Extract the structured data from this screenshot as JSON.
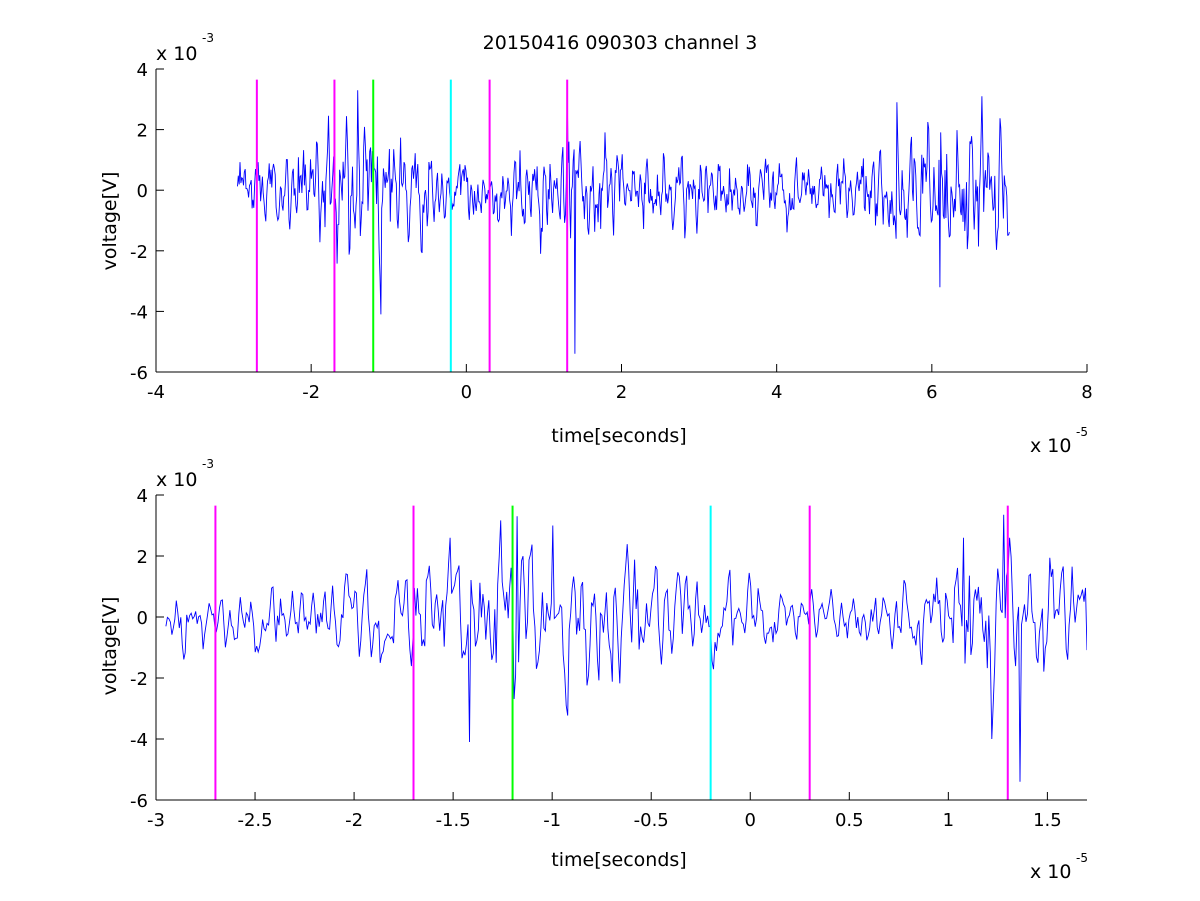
{
  "figure_title": "20150416 090303 channel 3",
  "colors": {
    "signal": "#0000ff",
    "marker_magenta": "#ff00ff",
    "marker_green": "#00ff00",
    "marker_cyan": "#00ffff",
    "axis": "#000000",
    "background": "#ffffff"
  },
  "chart_data": [
    {
      "type": "line",
      "title": "20150416 090303 channel 3",
      "xlabel": "time[seconds]",
      "ylabel": "voltage[V]",
      "x_exponent_base": "x 10",
      "x_exponent": "-5",
      "y_exponent_base": "x 10",
      "y_exponent": "-3",
      "xlim": [
        -4,
        8
      ],
      "ylim": [
        -6,
        4
      ],
      "x_ticks": [
        -4,
        -2,
        0,
        2,
        4,
        6,
        8
      ],
      "x_tick_labels": [
        "-4",
        "-2",
        "0",
        "2",
        "4",
        "6",
        "8"
      ],
      "y_ticks": [
        -6,
        -4,
        -2,
        0,
        2,
        4
      ],
      "y_tick_labels": [
        "-6",
        "-4",
        "-2",
        "0",
        "2",
        "4"
      ],
      "grid": false,
      "series": [
        {
          "color": "#0000ff",
          "signal": {
            "x_start": -2.95,
            "x_end": 7.0,
            "n_points": 900,
            "seed": 7,
            "envelope": [
              [
                -2.95,
                0.7
              ],
              [
                -2.3,
                0.8
              ],
              [
                -2.0,
                1.0
              ],
              [
                -1.6,
                1.6
              ],
              [
                -1.2,
                1.7
              ],
              [
                -0.8,
                1.3
              ],
              [
                -0.4,
                0.8
              ],
              [
                0.4,
                0.7
              ],
              [
                1.0,
                1.1
              ],
              [
                1.4,
                1.5
              ],
              [
                2.0,
                0.9
              ],
              [
                3.0,
                0.8
              ],
              [
                4.0,
                0.75
              ],
              [
                5.0,
                0.8
              ],
              [
                5.5,
                1.1
              ],
              [
                6.0,
                1.5
              ],
              [
                6.6,
                1.7
              ],
              [
                7.0,
                1.6
              ]
            ],
            "spikes": [
              [
                -1.1,
                -4.1
              ],
              [
                -1.4,
                3.3
              ],
              [
                1.3,
                3.4
              ],
              [
                1.4,
                -5.4
              ],
              [
                6.65,
                3.1
              ],
              [
                6.1,
                -3.2
              ],
              [
                5.55,
                2.9
              ]
            ]
          }
        }
      ],
      "markers": [
        {
          "x": -2.7,
          "color": "#ff00ff",
          "y_top": 3.65
        },
        {
          "x": -1.7,
          "color": "#ff00ff",
          "y_top": 3.65
        },
        {
          "x": -1.2,
          "color": "#00ff00",
          "y_top": 3.65
        },
        {
          "x": -0.2,
          "color": "#00ffff",
          "y_top": 3.65
        },
        {
          "x": 0.3,
          "color": "#ff00ff",
          "y_top": 3.65
        },
        {
          "x": 1.3,
          "color": "#ff00ff",
          "y_top": 3.65
        }
      ]
    },
    {
      "type": "line",
      "xlabel": "time[seconds]",
      "ylabel": "voltage[V]",
      "x_exponent_base": "x 10",
      "x_exponent": "-5",
      "y_exponent_base": "x 10",
      "y_exponent": "-3",
      "xlim": [
        -3.0,
        1.7
      ],
      "ylim": [
        -6,
        4
      ],
      "x_ticks": [
        -3,
        -2.5,
        -2,
        -1.5,
        -1,
        -0.5,
        0,
        0.5,
        1,
        1.5
      ],
      "x_tick_labels": [
        "-3",
        "-2.5",
        "-2",
        "-1.5",
        "-1",
        "-0.5",
        "0",
        "0.5",
        "1",
        "1.5"
      ],
      "y_ticks": [
        -6,
        -4,
        -2,
        0,
        2,
        4
      ],
      "y_tick_labels": [
        "-6",
        "-4",
        "-2",
        "0",
        "2",
        "4"
      ],
      "grid": false,
      "series": [
        {
          "color": "#0000ff",
          "signal": {
            "x_start": -2.95,
            "x_end": 1.7,
            "n_points": 620,
            "seed": 11,
            "envelope": [
              [
                -2.95,
                0.7
              ],
              [
                -2.3,
                0.7
              ],
              [
                -2.0,
                1.0
              ],
              [
                -1.6,
                1.2
              ],
              [
                -1.4,
                1.8
              ],
              [
                -1.1,
                1.9
              ],
              [
                -0.8,
                1.7
              ],
              [
                -0.5,
                1.2
              ],
              [
                -0.2,
                0.9
              ],
              [
                0.3,
                0.6
              ],
              [
                0.8,
                0.7
              ],
              [
                1.0,
                1.2
              ],
              [
                1.2,
                2.0
              ],
              [
                1.4,
                1.6
              ],
              [
                1.7,
                1.4
              ]
            ],
            "spikes": [
              [
                -1.42,
                -4.1
              ],
              [
                -1.18,
                3.3
              ],
              [
                1.22,
                -4.0
              ],
              [
                1.28,
                3.35
              ],
              [
                1.36,
                -5.4
              ],
              [
                -0.93,
                -2.9
              ],
              [
                -1.0,
                3.0
              ],
              [
                1.08,
                2.6
              ]
            ]
          }
        }
      ],
      "markers": [
        {
          "x": -2.7,
          "color": "#ff00ff",
          "y_top": 3.65
        },
        {
          "x": -1.7,
          "color": "#ff00ff",
          "y_top": 3.65
        },
        {
          "x": -1.2,
          "color": "#00ff00",
          "y_top": 3.65
        },
        {
          "x": -0.2,
          "color": "#00ffff",
          "y_top": 3.65
        },
        {
          "x": 0.3,
          "color": "#ff00ff",
          "y_top": 3.65
        },
        {
          "x": 1.3,
          "color": "#ff00ff",
          "y_top": 3.65
        }
      ]
    }
  ]
}
